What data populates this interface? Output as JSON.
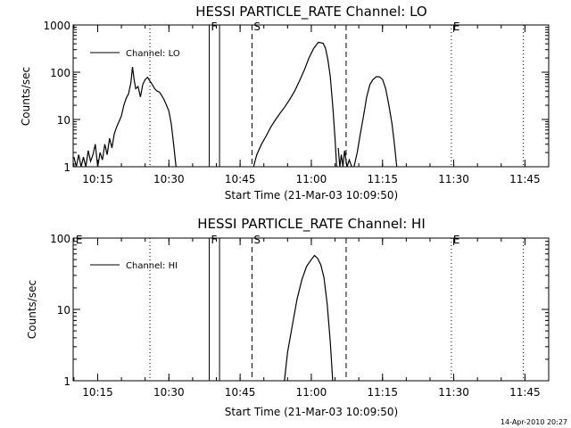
{
  "footer": {
    "timestamp": "14-Apr-2010 20:27"
  },
  "chart_data": [
    {
      "type": "line",
      "title": "HESSI PARTICLE_RATE Channel: LO",
      "xlabel": "Start Time (21-Mar-03 10:09:50)",
      "ylabel": "Counts/sec",
      "y_scale": "log",
      "xlim": [
        "10:09:50",
        "11:50:00"
      ],
      "ylim": [
        1,
        1000
      ],
      "x_ticks": [
        "10:15",
        "10:30",
        "10:45",
        "11:00",
        "11:15",
        "11:30",
        "11:45"
      ],
      "y_ticks": [
        "1",
        "10",
        "100",
        "1000"
      ],
      "legend": {
        "position": "top-left",
        "entries": [
          "Channel: LO"
        ]
      },
      "grid": false,
      "vlines": [
        {
          "time": "10:26:00",
          "style": "dotted",
          "label": ""
        },
        {
          "time": "10:38:30",
          "style": "solid",
          "label": "F"
        },
        {
          "time": "10:40:40",
          "style": "solid",
          "label": ""
        },
        {
          "time": "10:47:30",
          "style": "dashed",
          "label": "S"
        },
        {
          "time": "11:07:20",
          "style": "dashed",
          "label": ""
        },
        {
          "time": "11:29:30",
          "style": "dotted",
          "label": "E"
        },
        {
          "time": "11:44:40",
          "style": "dotted",
          "label": ""
        }
      ],
      "series": [
        {
          "name": "Channel: LO",
          "segments": [
            [
              [
                "10:10:00",
                1.6
              ],
              [
                "10:10:30",
                1
              ],
              [
                "10:11:00",
                1.8
              ],
              [
                "10:11:30",
                1
              ],
              [
                "10:12:00",
                1.6
              ],
              [
                "10:12:30",
                1
              ],
              [
                "10:13:00",
                2.2
              ],
              [
                "10:13:30",
                1.3
              ],
              [
                "10:14:00",
                1.8
              ],
              [
                "10:14:30",
                3
              ],
              [
                "10:15:00",
                1
              ],
              [
                "10:15:30",
                2
              ],
              [
                "10:16:00",
                1.4
              ],
              [
                "10:16:30",
                3
              ],
              [
                "10:17:00",
                1.8
              ],
              [
                "10:17:30",
                4
              ],
              [
                "10:18:00",
                2.5
              ],
              [
                "10:18:30",
                5
              ],
              [
                "10:19:00",
                7
              ],
              [
                "10:19:30",
                9
              ],
              [
                "10:20:00",
                12
              ],
              [
                "10:20:30",
                20
              ],
              [
                "10:21:00",
                28
              ],
              [
                "10:21:30",
                35
              ],
              [
                "10:22:00",
                60
              ],
              [
                "10:22:20",
                130
              ],
              [
                "10:22:40",
                70
              ],
              [
                "10:23:00",
                45
              ],
              [
                "10:23:30",
                50
              ],
              [
                "10:24:00",
                30
              ],
              [
                "10:24:30",
                55
              ],
              [
                "10:25:00",
                70
              ],
              [
                "10:25:30",
                78
              ],
              [
                "10:26:00",
                65
              ],
              [
                "10:26:30",
                55
              ],
              [
                "10:27:00",
                45
              ],
              [
                "10:27:30",
                40
              ],
              [
                "10:28:00",
                38
              ],
              [
                "10:28:30",
                32
              ],
              [
                "10:29:00",
                26
              ],
              [
                "10:29:30",
                20
              ],
              [
                "10:30:00",
                15
              ],
              [
                "10:30:30",
                8
              ],
              [
                "10:31:00",
                3
              ],
              [
                "10:31:30",
                1
              ]
            ],
            [
              [
                "10:47:50",
                1
              ],
              [
                "10:48:30",
                1.8
              ],
              [
                "10:49:30",
                3
              ],
              [
                "10:50:30",
                4.5
              ],
              [
                "10:51:30",
                7
              ],
              [
                "10:52:30",
                10
              ],
              [
                "10:53:30",
                14
              ],
              [
                "10:54:30",
                19
              ],
              [
                "10:55:30",
                27
              ],
              [
                "10:56:30",
                40
              ],
              [
                "10:57:30",
                65
              ],
              [
                "10:58:30",
                110
              ],
              [
                "10:59:30",
                200
              ],
              [
                "11:00:30",
                320
              ],
              [
                "11:01:30",
                430
              ],
              [
                "11:02:30",
                410
              ],
              [
                "11:03:00",
                320
              ],
              [
                "11:03:30",
                180
              ],
              [
                "11:04:00",
                80
              ],
              [
                "11:04:30",
                20
              ],
              [
                "11:05:00",
                4
              ],
              [
                "11:05:20",
                1
              ]
            ],
            [
              [
                "11:05:40",
                2.5
              ],
              [
                "11:06:00",
                1
              ],
              [
                "11:06:20",
                1.8
              ],
              [
                "11:06:40",
                1
              ],
              [
                "11:07:00",
                2.2
              ],
              [
                "11:07:30",
                1
              ],
              [
                "11:08:00",
                1.4
              ],
              [
                "11:08:30",
                1
              ]
            ],
            [
              [
                "11:09:00",
                1
              ],
              [
                "11:09:40",
                2
              ],
              [
                "11:10:20",
                5
              ],
              [
                "11:11:00",
                12
              ],
              [
                "11:11:40",
                30
              ],
              [
                "11:12:20",
                55
              ],
              [
                "11:13:00",
                70
              ],
              [
                "11:13:40",
                80
              ],
              [
                "11:14:20",
                80
              ],
              [
                "11:15:00",
                70
              ],
              [
                "11:15:40",
                45
              ],
              [
                "11:16:20",
                20
              ],
              [
                "11:17:00",
                8
              ],
              [
                "11:17:30",
                3
              ],
              [
                "11:18:00",
                1
              ]
            ]
          ]
        }
      ]
    },
    {
      "type": "line",
      "title": "HESSI PARTICLE_RATE Channel: HI",
      "xlabel": "Start Time (21-Mar-03 10:09:50)",
      "ylabel": "Counts/sec",
      "y_scale": "log",
      "xlim": [
        "10:09:50",
        "11:50:00"
      ],
      "ylim": [
        1,
        100
      ],
      "x_ticks": [
        "10:15",
        "10:30",
        "10:45",
        "11:00",
        "11:15",
        "11:30",
        "11:45"
      ],
      "y_ticks": [
        "1",
        "10",
        "100"
      ],
      "legend": {
        "position": "top-left",
        "entries": [
          "Channel: HI"
        ]
      },
      "grid": false,
      "vlines": [
        {
          "time": "10:10:00",
          "style": "none",
          "label": "E"
        },
        {
          "time": "10:26:00",
          "style": "dotted",
          "label": ""
        },
        {
          "time": "10:38:30",
          "style": "solid",
          "label": "F"
        },
        {
          "time": "10:40:40",
          "style": "solid",
          "label": ""
        },
        {
          "time": "10:47:30",
          "style": "dashed",
          "label": "S"
        },
        {
          "time": "11:07:20",
          "style": "dashed",
          "label": ""
        },
        {
          "time": "11:29:30",
          "style": "dotted",
          "label": "E"
        },
        {
          "time": "11:44:40",
          "style": "dotted",
          "label": ""
        }
      ],
      "series": [
        {
          "name": "Channel: HI",
          "segments": [
            [
              [
                "10:54:20",
                1
              ],
              [
                "10:55:00",
                2.5
              ],
              [
                "10:56:00",
                6
              ],
              [
                "10:57:00",
                14
              ],
              [
                "10:58:00",
                26
              ],
              [
                "10:59:00",
                40
              ],
              [
                "11:00:00",
                50
              ],
              [
                "11:00:40",
                57
              ],
              [
                "11:01:20",
                52
              ],
              [
                "11:02:00",
                42
              ],
              [
                "11:02:40",
                28
              ],
              [
                "11:03:20",
                12
              ],
              [
                "11:04:00",
                3.5
              ],
              [
                "11:04:30",
                1
              ]
            ]
          ]
        }
      ]
    }
  ]
}
